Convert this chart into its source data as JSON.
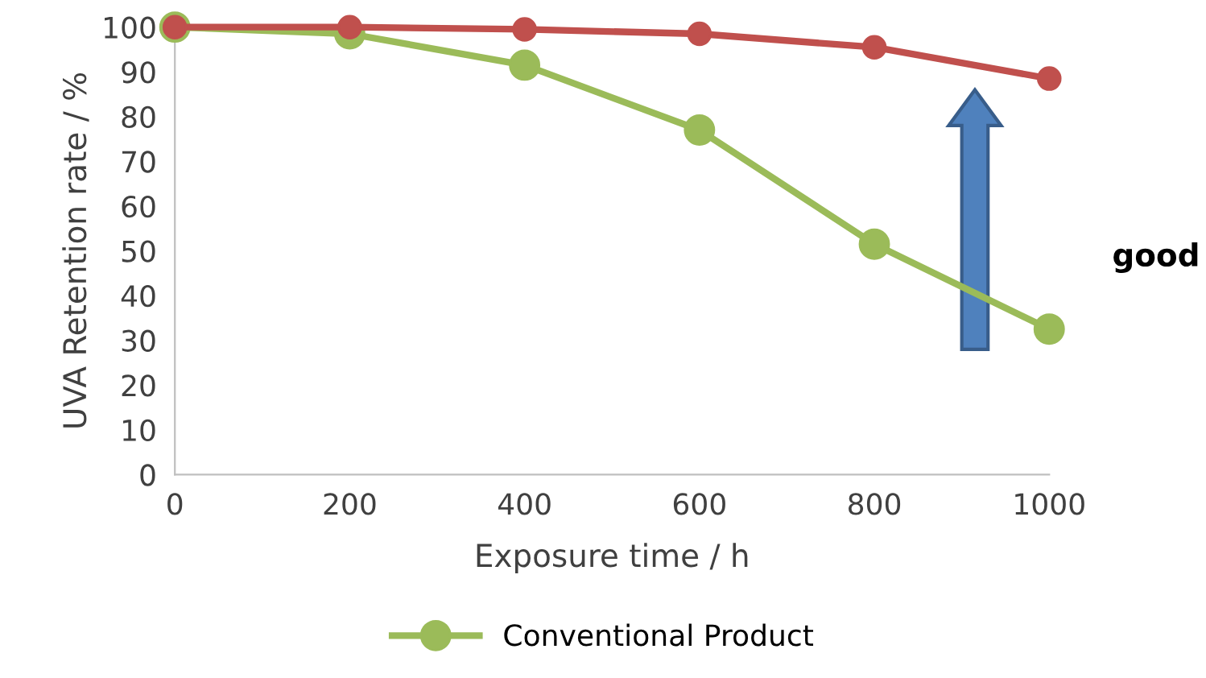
{
  "chart_data": {
    "type": "line",
    "xlabel": "Exposure time / h",
    "ylabel": "UVA Retention rate / %",
    "x": [
      0,
      200,
      400,
      600,
      800,
      1000
    ],
    "series": [
      {
        "name": "Conventional Product",
        "color": "#9bbb59",
        "values": [
          100,
          98.5,
          91.5,
          77,
          51.5,
          32.5
        ]
      },
      {
        "color": "#c0504d",
        "values": [
          100,
          100,
          99.5,
          98.5,
          95.5,
          88.5
        ]
      }
    ],
    "xlim": [
      0,
      1000
    ],
    "xticks": [
      0,
      200,
      400,
      600,
      800,
      1000
    ],
    "ylim": [
      0,
      100
    ],
    "yticks": [
      0,
      10,
      20,
      30,
      40,
      50,
      60,
      70,
      80,
      90,
      100
    ],
    "grid": false,
    "legend": "bottom",
    "marker": "circle",
    "line_style": "solid",
    "annotations": [
      "good"
    ]
  }
}
